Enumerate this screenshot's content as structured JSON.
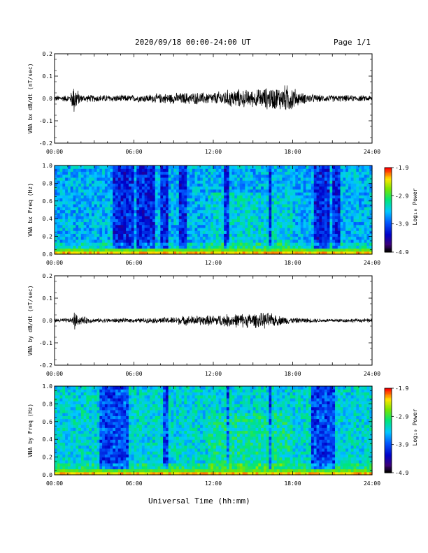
{
  "header": {
    "title": "2020/09/18  00:00-24:00 UT",
    "page": "Page 1/1"
  },
  "x_axis": {
    "label": "Universal Time (hh:mm)",
    "ticks": [
      "00:00",
      "06:00",
      "12:00",
      "18:00",
      "24:00"
    ]
  },
  "colorbar": {
    "label": "Log₁₀ Power",
    "ticks": [
      "-1.9",
      "-2.9",
      "-3.9",
      "-4.9"
    ]
  },
  "chart_data": [
    {
      "type": "line",
      "ylabel": "VNA bx dB/dt (nT/sec)",
      "ylim": [
        -0.2,
        0.2
      ],
      "xlim": [
        0,
        24
      ],
      "yticks": [
        "0.2",
        "0.1",
        "0.0",
        "-0.1",
        "-0.2"
      ],
      "envelope": [
        [
          0,
          0.012
        ],
        [
          1.2,
          0.015
        ],
        [
          1.4,
          0.06
        ],
        [
          1.55,
          0.07
        ],
        [
          1.7,
          0.04
        ],
        [
          2.0,
          0.015
        ],
        [
          4,
          0.015
        ],
        [
          6,
          0.014
        ],
        [
          8,
          0.02
        ],
        [
          10,
          0.025
        ],
        [
          12,
          0.025
        ],
        [
          13.5,
          0.04
        ],
        [
          15,
          0.035
        ],
        [
          16,
          0.045
        ],
        [
          17,
          0.05
        ],
        [
          17.8,
          0.06
        ],
        [
          18.5,
          0.025
        ],
        [
          20,
          0.015
        ],
        [
          24,
          0.012
        ]
      ]
    },
    {
      "type": "heatmap",
      "ylabel": "VNA bx Freq (Hz)",
      "ylim": [
        0,
        1.0
      ],
      "xlim": [
        0,
        24
      ],
      "yticks": [
        "1.0",
        "0.8",
        "0.6",
        "0.4",
        "0.2",
        "0.0"
      ],
      "zlim": [
        -4.9,
        -1.9
      ],
      "dark_bands": [
        [
          4.5,
          6.0
        ],
        [
          6.3,
          7.6
        ],
        [
          8.0,
          8.6
        ],
        [
          9.4,
          9.9
        ],
        [
          12.8,
          13.1
        ],
        [
          16.1,
          16.4
        ],
        [
          19.7,
          20.8
        ],
        [
          21.1,
          21.5
        ]
      ]
    },
    {
      "type": "line",
      "ylabel": "VNA by dB/dt (nT/sec)",
      "ylim": [
        -0.2,
        0.2
      ],
      "xlim": [
        0,
        24
      ],
      "yticks": [
        "0.2",
        "0.1",
        "0.0",
        "-0.1",
        "-0.2"
      ],
      "envelope": [
        [
          0,
          0.008
        ],
        [
          1.3,
          0.01
        ],
        [
          1.55,
          0.045
        ],
        [
          1.7,
          0.02
        ],
        [
          3,
          0.009
        ],
        [
          6,
          0.009
        ],
        [
          8,
          0.012
        ],
        [
          10,
          0.02
        ],
        [
          12,
          0.022
        ],
        [
          14,
          0.03
        ],
        [
          15.5,
          0.03
        ],
        [
          16,
          0.035
        ],
        [
          17,
          0.02
        ],
        [
          18,
          0.012
        ],
        [
          20,
          0.008
        ],
        [
          24,
          0.008
        ]
      ]
    },
    {
      "type": "heatmap",
      "ylabel": "VNA by Freq (Hz)",
      "ylim": [
        0,
        1.0
      ],
      "xlim": [
        0,
        24
      ],
      "yticks": [
        "1.0",
        "0.8",
        "0.6",
        "0.4",
        "0.2",
        "0.0"
      ],
      "zlim": [
        -4.9,
        -1.9
      ],
      "dark_bands": [
        [
          3.5,
          5.5
        ],
        [
          8.2,
          8.6
        ],
        [
          12.9,
          13.1
        ],
        [
          16.1,
          16.3
        ],
        [
          19.5,
          21.2
        ]
      ]
    }
  ]
}
